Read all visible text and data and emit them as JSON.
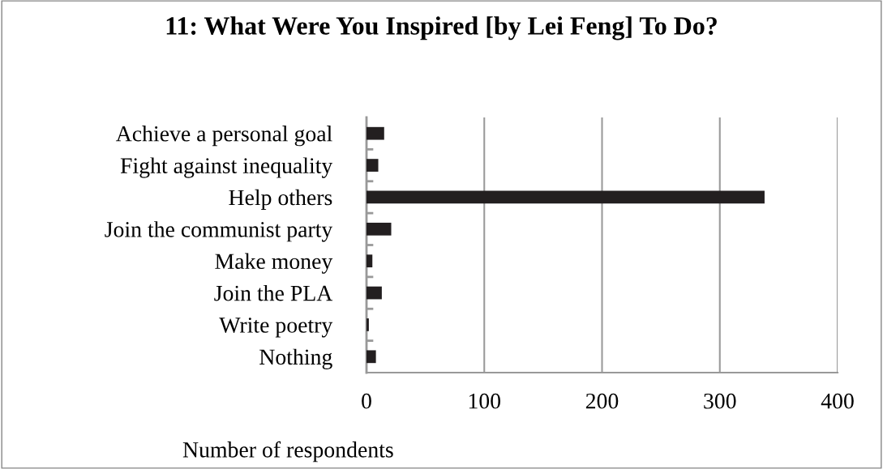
{
  "chart_data": {
    "type": "bar",
    "orientation": "horizontal",
    "title": "11: What Were You Inspired [by Lei Feng] To Do?",
    "xlabel": "Number of respondents",
    "categories": [
      "Achieve a personal goal",
      "Fight against inequality",
      "Help others",
      "Join the communist party",
      "Make money",
      "Join the PLA",
      "Write poetry",
      "Nothing"
    ],
    "values": [
      15,
      10,
      338,
      21,
      5,
      13,
      2,
      8
    ],
    "color": "#231f20",
    "xlim": [
      0,
      400
    ],
    "xticks": [
      0,
      100,
      200,
      300,
      400
    ],
    "grid": "x",
    "legend": false
  }
}
